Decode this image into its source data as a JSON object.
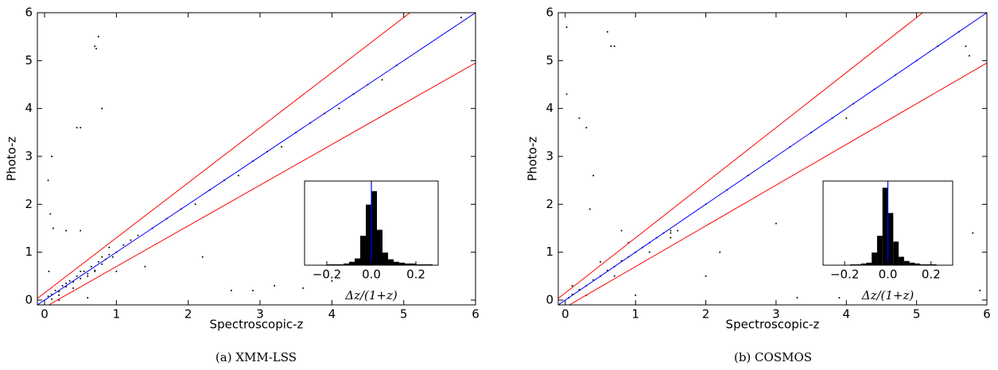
{
  "chart_data": [
    {
      "type": "scatter",
      "caption": "(a) XMM-LSS",
      "xlabel": "Spectroscopic-z",
      "ylabel": "Photo-z",
      "xlim": [
        -0.1,
        6
      ],
      "ylim": [
        -0.1,
        6
      ],
      "xticks": [
        0,
        1,
        2,
        3,
        4,
        5,
        6
      ],
      "yticks": [
        0,
        1,
        2,
        3,
        4,
        5,
        6
      ],
      "series": [
        {
          "type": "scatter",
          "color": "#000000",
          "x": [
            0.05,
            0.1,
            0.15,
            0.2,
            0.25,
            0.3,
            0.35,
            0.4,
            0.45,
            0.5,
            0.55,
            0.6,
            0.65,
            0.7,
            0.75,
            0.8,
            0.85,
            0.9,
            0.95,
            1.0,
            0.1,
            0.2,
            0.3,
            0.4,
            0.5,
            0.6,
            0.7,
            0.8,
            0.9,
            1.1,
            1.2,
            1.3,
            1.5,
            1.7,
            1.9,
            2.1,
            2.3,
            2.5,
            2.7,
            2.9,
            3.1,
            3.3,
            3.5,
            3.7,
            3.9,
            4.1,
            4.3,
            4.5,
            4.7,
            4.9,
            0.05,
            0.08,
            0.1,
            0.12,
            0.06,
            0.3,
            0.5,
            0.7,
            0.72,
            0.75,
            0.5,
            0.45,
            0.8,
            2.6,
            2.9,
            3.2,
            3.6,
            0.2,
            0.6,
            1.0,
            1.4,
            2.2,
            4.0,
            5.8
          ],
          "values": [
            0.08,
            0.12,
            0.2,
            0.18,
            0.3,
            0.28,
            0.4,
            0.38,
            0.5,
            0.45,
            0.6,
            0.55,
            0.7,
            0.62,
            0.8,
            0.75,
            0.85,
            0.95,
            0.9,
            1.0,
            0.02,
            0.1,
            0.35,
            0.25,
            0.6,
            0.5,
            0.6,
            0.9,
            1.1,
            1.15,
            1.25,
            1.35,
            1.5,
            1.7,
            1.9,
            2.0,
            2.3,
            2.5,
            2.6,
            2.9,
            3.1,
            3.2,
            3.5,
            3.7,
            3.9,
            4.0,
            4.3,
            4.5,
            4.6,
            4.9,
            2.5,
            1.8,
            3.0,
            1.5,
            0.6,
            1.45,
            1.45,
            5.3,
            5.25,
            5.5,
            3.6,
            3.6,
            4.0,
            0.2,
            0.2,
            0.3,
            0.25,
            0.0,
            0.05,
            0.6,
            0.7,
            0.9,
            0.4,
            5.9
          ]
        },
        {
          "type": "line",
          "color": "#ff0000",
          "x": [
            -0.1,
            5.087
          ],
          "values": [
            0.035,
            6
          ]
        },
        {
          "type": "line",
          "color": "#ff0000",
          "x": [
            -0.1,
            6
          ],
          "values": [
            -0.235,
            4.95
          ]
        },
        {
          "type": "line",
          "color": "#0000ff",
          "x": [
            -0.1,
            6
          ],
          "values": [
            -0.1,
            6
          ]
        }
      ]
    },
    {
      "type": "scatter",
      "caption": "(b) COSMOS",
      "xlabel": "Spectroscopic-z",
      "ylabel": "Photo-z",
      "xlim": [
        -0.1,
        6
      ],
      "ylim": [
        -0.1,
        6
      ],
      "xticks": [
        0,
        1,
        2,
        3,
        4,
        5,
        6
      ],
      "yticks": [
        0,
        1,
        2,
        3,
        4,
        5,
        6
      ],
      "series": [
        {
          "type": "scatter",
          "color": "#000000",
          "x": [
            0.05,
            0.1,
            0.2,
            0.3,
            0.4,
            0.5,
            0.6,
            0.7,
            0.8,
            0.9,
            1.0,
            1.1,
            1.2,
            1.3,
            1.4,
            1.5,
            1.6,
            0.1,
            0.3,
            0.5,
            0.7,
            0.9,
            1.2,
            1.5,
            2.0,
            2.3,
            2.6,
            2.9,
            3.2,
            3.5,
            3.8,
            4.1,
            4.4,
            4.7,
            5.0,
            5.3,
            5.6,
            5.7,
            5.75,
            0.02,
            0.02,
            0.2,
            0.3,
            0.6,
            0.65,
            0.7,
            1.5,
            2.2,
            3.0,
            3.3,
            3.9,
            5.8,
            5.9,
            0.8,
            1.0,
            2.0,
            4.0,
            5.0,
            0.4,
            0.35
          ],
          "values": [
            0.05,
            0.12,
            0.22,
            0.3,
            0.42,
            0.5,
            0.62,
            0.7,
            0.82,
            0.9,
            1.0,
            1.1,
            1.2,
            1.3,
            1.4,
            1.45,
            1.45,
            0.3,
            0.1,
            0.8,
            0.5,
            1.2,
            1.0,
            1.3,
            2.0,
            2.3,
            2.6,
            2.9,
            3.2,
            3.5,
            3.8,
            4.1,
            4.4,
            4.7,
            5.0,
            5.3,
            5.6,
            5.3,
            5.1,
            5.7,
            4.3,
            3.8,
            3.6,
            5.6,
            5.3,
            5.3,
            1.4,
            1.0,
            1.6,
            0.05,
            0.05,
            1.4,
            0.2,
            1.45,
            0.1,
            0.5,
            3.8,
            1.2,
            2.6,
            1.9
          ]
        },
        {
          "type": "line",
          "color": "#ff0000",
          "x": [
            -0.1,
            5.087
          ],
          "values": [
            0.035,
            6
          ]
        },
        {
          "type": "line",
          "color": "#ff0000",
          "x": [
            -0.1,
            6
          ],
          "values": [
            -0.235,
            4.95
          ]
        },
        {
          "type": "line",
          "color": "#0000ff",
          "x": [
            -0.1,
            6
          ],
          "values": [
            -0.1,
            6
          ]
        }
      ]
    },
    {
      "type": "histogram",
      "xlabel": "Δz/(1+z)",
      "color": "#000000",
      "vline": 0,
      "vline_color": "#0000ff",
      "xlim": [
        -0.3,
        0.3
      ],
      "ylim": [
        0,
        100
      ],
      "xticks": [
        {
          "value": -0.2,
          "label": "−0.2"
        },
        {
          "value": 0,
          "label": "0.0"
        },
        {
          "value": 0.2,
          "label": "0.2"
        }
      ],
      "bins": [
        -0.3,
        -0.275,
        -0.25,
        -0.225,
        -0.2,
        -0.175,
        -0.15,
        -0.125,
        -0.1,
        -0.075,
        -0.05,
        -0.025,
        0,
        0.025,
        0.05,
        0.075,
        0.1,
        0.125,
        0.15,
        0.175,
        0.2,
        0.225,
        0.25,
        0.275,
        0.3
      ],
      "counts": [
        0,
        0,
        0,
        0,
        1,
        1,
        1,
        2,
        4,
        8,
        35,
        72,
        88,
        42,
        15,
        7,
        4,
        3,
        2,
        2,
        1,
        1,
        1,
        0
      ]
    },
    {
      "type": "histogram",
      "xlabel": "Δz/(1+z)",
      "color": "#000000",
      "vline": 0,
      "vline_color": "#0000ff",
      "xlim": [
        -0.3,
        0.3
      ],
      "ylim": [
        0,
        100
      ],
      "xticks": [
        {
          "value": -0.2,
          "label": "−0.2"
        },
        {
          "value": 0,
          "label": "0.0"
        },
        {
          "value": 0.2,
          "label": "0.2"
        }
      ],
      "bins": [
        -0.3,
        -0.275,
        -0.25,
        -0.225,
        -0.2,
        -0.175,
        -0.15,
        -0.125,
        -0.1,
        -0.075,
        -0.05,
        -0.025,
        0,
        0.025,
        0.05,
        0.075,
        0.1,
        0.125,
        0.15,
        0.175,
        0.2,
        0.225,
        0.25,
        0.275,
        0.3
      ],
      "counts": [
        0,
        0,
        0,
        0,
        0,
        1,
        1,
        2,
        3,
        15,
        35,
        92,
        62,
        28,
        10,
        5,
        3,
        2,
        1,
        1,
        1,
        0,
        0,
        0
      ]
    }
  ]
}
